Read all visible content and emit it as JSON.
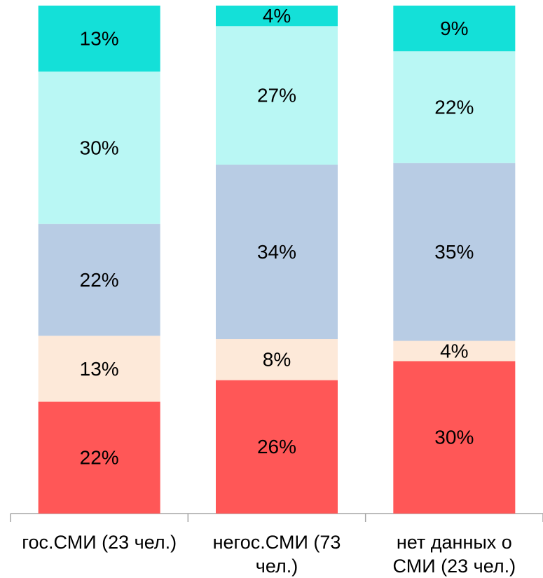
{
  "chart_data": {
    "type": "stacked_bar_100",
    "categories": [
      "гос.СМИ (23 чел.)",
      "негос.СМИ (73 чел.)",
      "нет данных о СМИ (23 чел.)"
    ],
    "series": [
      {
        "color": "#ff5757",
        "values": [
          22,
          26,
          30
        ],
        "value_labels": [
          "22%",
          "26%",
          "30%"
        ]
      },
      {
        "color": "#fde9d9",
        "values": [
          13,
          8,
          4
        ],
        "value_labels": [
          "13%",
          "8%",
          "4%"
        ]
      },
      {
        "color": "#b8cce4",
        "values": [
          22,
          34,
          35
        ],
        "value_labels": [
          "22%",
          "34%",
          "35%"
        ]
      },
      {
        "color": "#b9f7f4",
        "values": [
          30,
          27,
          22
        ],
        "value_labels": [
          "30%",
          "27%",
          "22%"
        ]
      },
      {
        "color": "#14e0d8",
        "values": [
          13,
          4,
          9
        ],
        "value_labels": [
          "13%",
          "4%",
          "9%"
        ]
      }
    ]
  }
}
